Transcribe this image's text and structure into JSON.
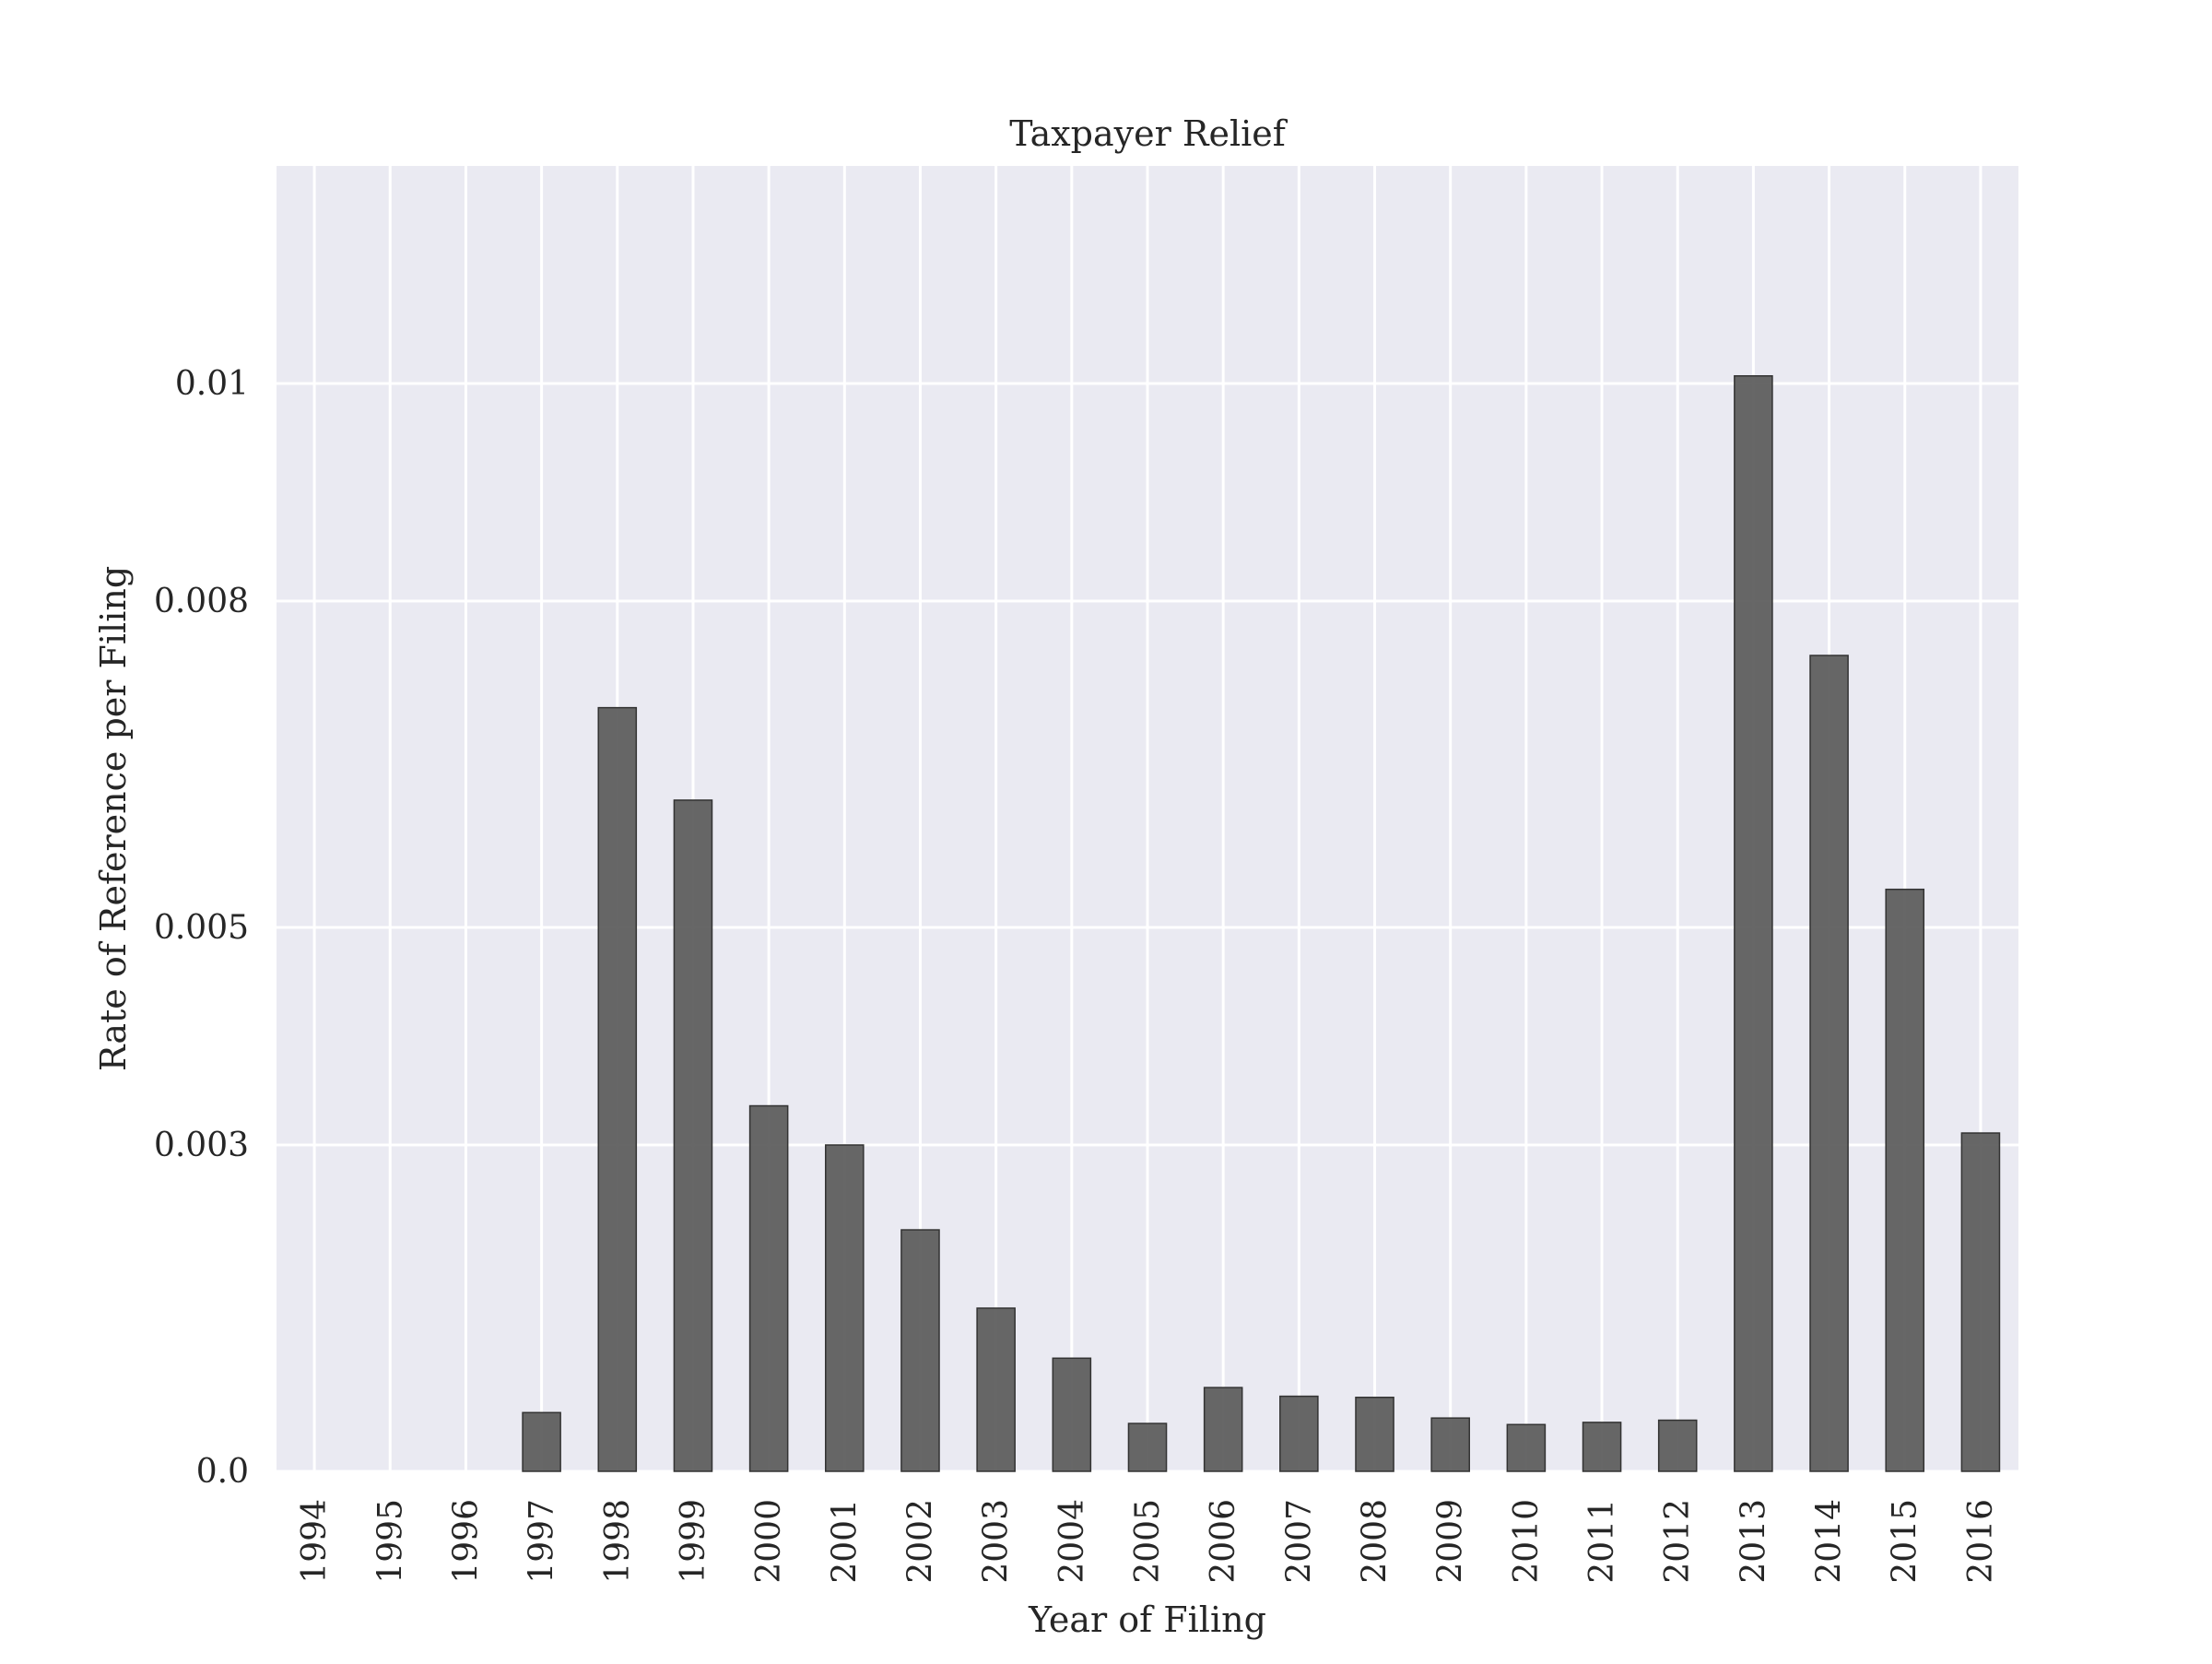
{
  "chart_data": {
    "type": "bar",
    "title": "Taxpayer Relief",
    "xlabel": "Year of Filing",
    "ylabel": "Rate of Reference per Filing",
    "categories": [
      "1994",
      "1995",
      "1996",
      "1997",
      "1998",
      "1999",
      "2000",
      "2001",
      "2002",
      "2003",
      "2004",
      "2005",
      "2006",
      "2007",
      "2008",
      "2009",
      "2010",
      "2011",
      "2012",
      "2013",
      "2014",
      "2015",
      "2016"
    ],
    "values": [
      0.0,
      0.0,
      0.0,
      0.00054,
      0.00702,
      0.00617,
      0.00336,
      0.003,
      0.00222,
      0.0015,
      0.00104,
      0.00044,
      0.00077,
      0.00069,
      0.00068,
      0.00049,
      0.00043,
      0.00045,
      0.00047,
      0.01007,
      0.0075,
      0.00535,
      0.00311
    ],
    "ylim": [
      0,
      0.012
    ],
    "yticks": [
      0,
      0.003,
      0.005,
      0.008,
      0.01
    ],
    "ytick_labels": [
      "0.0",
      "0.003",
      "0.005",
      "0.008",
      "0.01"
    ],
    "grid": true,
    "colors": {
      "plot_background": "#eaeaf2",
      "grid": "#ffffff",
      "bar_fill": "#5a5a5a",
      "bar_edge": "#333333"
    }
  }
}
